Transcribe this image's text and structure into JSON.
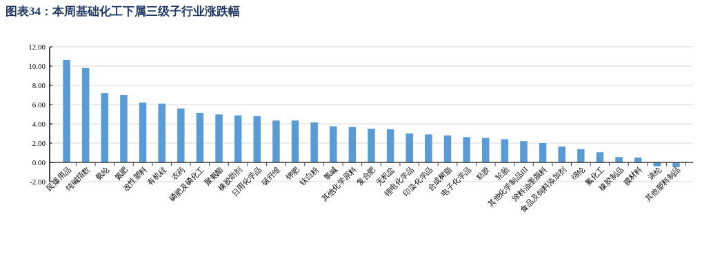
{
  "chart_data": {
    "type": "bar",
    "title": "图表34：本周基础化工下属三级子行业涨跌幅",
    "categories": [
      "民爆用品",
      "纯碱指数",
      "氨纶",
      "氮肥",
      "改性塑料",
      "有机硅",
      "农药",
      "磷肥及磷化工",
      "聚氨酯",
      "橡胶助剂",
      "日用化学品",
      "碳纤维",
      "钾肥",
      "钛白粉",
      "氯碱",
      "其他化学原料",
      "复合肥",
      "无机盐",
      "锂电化学品",
      "印染化学品",
      "合成树脂",
      "电子化学品",
      "粘胶",
      "轮胎",
      "其他化学制品III",
      "涂料油墨颜料",
      "食品及饲料添加剂",
      "绵纶",
      "氟化工",
      "橡胶制品",
      "膜材料",
      "涤纶",
      "其他塑料制品"
    ],
    "values": [
      10.65,
      9.8,
      7.2,
      7.0,
      6.2,
      6.1,
      5.6,
      5.15,
      4.98,
      4.88,
      4.8,
      4.35,
      4.35,
      4.15,
      3.75,
      3.68,
      3.5,
      3.45,
      3.0,
      2.9,
      2.8,
      2.62,
      2.55,
      2.4,
      2.2,
      2.0,
      1.65,
      1.38,
      1.05,
      0.55,
      0.5,
      -0.4,
      -0.5
    ],
    "color": "#5b9bd5",
    "ylim": [
      -2,
      12
    ],
    "yticks": [
      {
        "value": -2,
        "label": "-2.00"
      },
      {
        "value": 0,
        "label": "0.00"
      },
      {
        "value": 2,
        "label": "2.00"
      },
      {
        "value": 4,
        "label": "4.00"
      },
      {
        "value": 6,
        "label": "6.00"
      },
      {
        "value": 8,
        "label": "8.00"
      },
      {
        "value": 10,
        "label": "10.00"
      },
      {
        "value": 12,
        "label": "12.00"
      }
    ],
    "grid": "y"
  }
}
